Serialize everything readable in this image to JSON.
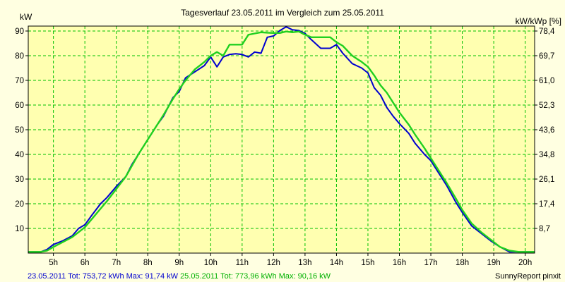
{
  "chart_data": {
    "type": "line",
    "title": "Tagesverlauf 23.05.2011 im Vergleich zum 25.05.2011",
    "ylabel_left": "kW",
    "ylabel_right": "kW/kWp [%]",
    "xlim": [
      4.2,
      20.3
    ],
    "ylim": [
      0,
      92
    ],
    "x_ticks": [
      5,
      6,
      7,
      8,
      9,
      10,
      11,
      12,
      13,
      14,
      15,
      16,
      17,
      18,
      19,
      20
    ],
    "x_tick_labels": [
      "5h",
      "6h",
      "7h",
      "8h",
      "9h",
      "10h",
      "11h",
      "12h",
      "13h",
      "14h",
      "15h",
      "16h",
      "17h",
      "18h",
      "19h",
      "20h"
    ],
    "y_ticks": [
      10,
      20,
      30,
      40,
      50,
      60,
      70,
      80,
      90
    ],
    "y_tick_labels": [
      "10",
      "20",
      "30",
      "40",
      "50",
      "60",
      "70",
      "80",
      "90"
    ],
    "y2_tick_labels": [
      "8,7",
      "17,4",
      "26,1",
      "34,8",
      "43,6",
      "52,3",
      "61,0",
      "69,7",
      "78,4"
    ],
    "grid": true,
    "grid_color": "#00c000",
    "series": [
      {
        "color": "#0000d0",
        "x": [
          4.2,
          4.6,
          4.8,
          5.0,
          5.3,
          5.6,
          5.8,
          6.0,
          6.2,
          6.5,
          6.7,
          7.0,
          7.3,
          7.5,
          7.7,
          8.0,
          8.3,
          8.5,
          8.8,
          9.0,
          9.2,
          9.5,
          9.8,
          10.0,
          10.2,
          10.4,
          10.6,
          10.8,
          11.0,
          11.2,
          11.4,
          11.6,
          11.8,
          12.0,
          12.2,
          12.4,
          12.6,
          12.8,
          13.0,
          13.2,
          13.5,
          13.8,
          14.0,
          14.2,
          14.5,
          14.8,
          15.0,
          15.2,
          15.4,
          15.6,
          15.8,
          16.0,
          16.3,
          16.5,
          16.8,
          17.0,
          17.2,
          17.5,
          17.8,
          18.0,
          18.3,
          18.6,
          18.9,
          19.2,
          19.5,
          19.8,
          20.0,
          20.3
        ],
        "y": [
          0.5,
          0.5,
          1.5,
          3.5,
          5,
          7,
          10,
          11.5,
          15,
          20,
          22.5,
          27,
          31,
          36,
          40,
          46,
          52,
          55.5,
          63,
          65.5,
          71,
          73.5,
          76,
          79.5,
          75.5,
          79.5,
          80.5,
          80.8,
          80.5,
          79.5,
          81.5,
          81,
          87.5,
          88,
          90.2,
          91.7,
          90.5,
          90.2,
          89,
          86.5,
          83,
          83,
          84.5,
          81,
          76.8,
          75,
          73,
          67,
          64,
          59,
          55.5,
          52.5,
          48.5,
          44.5,
          40,
          37.5,
          33.5,
          27.5,
          20.5,
          16.5,
          11,
          8,
          5,
          2.5,
          0.5,
          0.5,
          0.5,
          0.5
        ]
      },
      {
        "color": "#20d020",
        "x": [
          4.2,
          4.6,
          4.8,
          5.0,
          5.3,
          5.6,
          5.8,
          6.0,
          6.2,
          6.5,
          6.7,
          7.0,
          7.3,
          7.5,
          7.7,
          8.0,
          8.3,
          8.5,
          8.8,
          9.0,
          9.2,
          9.5,
          9.8,
          10.0,
          10.2,
          10.4,
          10.6,
          10.8,
          11.0,
          11.2,
          11.4,
          11.6,
          11.8,
          12.0,
          12.2,
          12.4,
          12.6,
          12.8,
          13.0,
          13.2,
          13.5,
          13.8,
          14.0,
          14.2,
          14.5,
          14.8,
          15.0,
          15.2,
          15.4,
          15.6,
          15.8,
          16.0,
          16.3,
          16.5,
          16.8,
          17.0,
          17.2,
          17.5,
          17.8,
          18.0,
          18.3,
          18.6,
          18.9,
          19.2,
          19.5,
          19.8,
          20.0,
          20.3
        ],
        "y": [
          0.5,
          0.5,
          1,
          2.5,
          4.5,
          6.5,
          8.5,
          10.5,
          13.5,
          18,
          21,
          26,
          31,
          35.5,
          40,
          46,
          52,
          56,
          62.5,
          66.5,
          70,
          74.5,
          77.5,
          80,
          81.5,
          80,
          84.5,
          84.5,
          84.5,
          88.5,
          89,
          89.5,
          89.3,
          89.2,
          89.2,
          89.8,
          89.5,
          89.8,
          88.5,
          87.5,
          87.5,
          87.5,
          85.5,
          84,
          80,
          77.5,
          75.5,
          72,
          68,
          65,
          61,
          57,
          52,
          48,
          42.5,
          38.5,
          34.5,
          28.5,
          22,
          17.5,
          12,
          8.5,
          5.5,
          2.5,
          1,
          0.5,
          0.5,
          0.5
        ]
      }
    ]
  },
  "footer": {
    "blue_text": "23.05.2011 Tot: 753,72 kWh Max: 91,74 kW",
    "green_text": "25.05.2011 Tot: 773,96 kWh Max: 90,16 kW",
    "credit": "SunnyReport pinxit"
  }
}
